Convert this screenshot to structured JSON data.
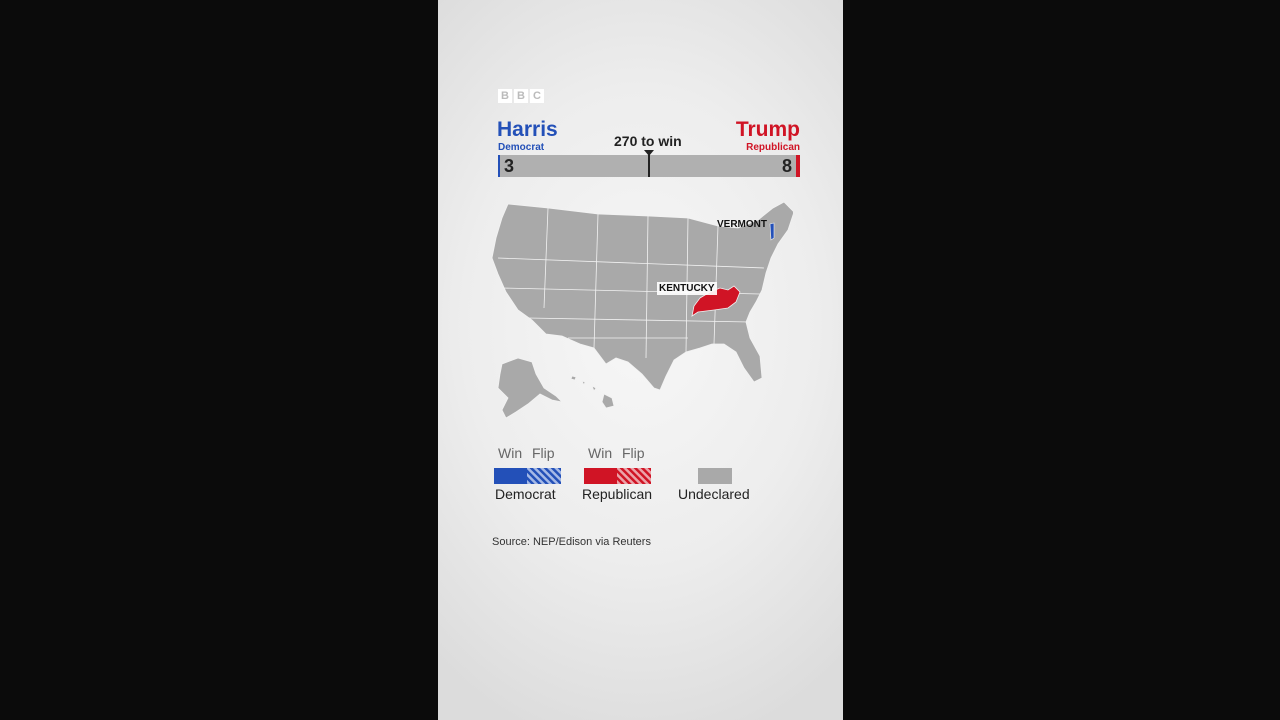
{
  "brand": {
    "letters": [
      "B",
      "B",
      "C"
    ]
  },
  "race": {
    "threshold_label": "270 to win",
    "threshold": 270,
    "total": 538,
    "democrat": {
      "name": "Harris",
      "party": "Democrat",
      "votes": 3,
      "votes_label": "3",
      "color": "#2350b8"
    },
    "republican": {
      "name": "Trump",
      "party": "Republican",
      "votes": 8,
      "votes_label": "8",
      "color": "#d01425"
    }
  },
  "map": {
    "states_called": [
      {
        "name": "VERMONT",
        "winner": "democrat"
      },
      {
        "name": "KENTUCKY",
        "winner": "republican"
      }
    ],
    "undeclared_color": "#a9a9a9"
  },
  "legend": {
    "win_label": "Win",
    "flip_label": "Flip",
    "democrat_label": "Democrat",
    "republican_label": "Republican",
    "undeclared_label": "Undeclared"
  },
  "source": "Source: NEP/Edison via Reuters"
}
